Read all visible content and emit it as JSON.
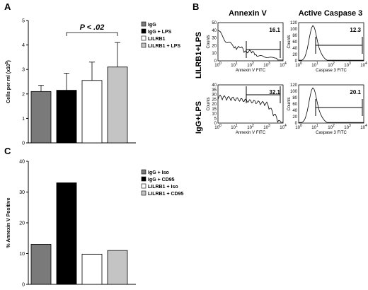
{
  "panels": {
    "a": {
      "letter": "A"
    },
    "b": {
      "letter": "B"
    },
    "c": {
      "letter": "C"
    }
  },
  "chart_data": [
    {
      "type": "bar",
      "panel": "A",
      "ylabel": "Cells per ml (x10^5)",
      "ylim": [
        0,
        5
      ],
      "yticks": [
        0,
        1,
        2,
        3,
        4,
        5
      ],
      "categories": [
        "IgG",
        "IgG + LPS",
        "LILRB1",
        "LILRB1 + LPS"
      ],
      "values": [
        2.1,
        2.15,
        2.55,
        3.1
      ],
      "errors": [
        0.25,
        0.7,
        0.75,
        1.0
      ],
      "colors": [
        "#7a7a7a",
        "#000000",
        "#ffffff",
        "#c4c4c4"
      ],
      "annotation": "P < .02",
      "legend_position": "right"
    },
    {
      "type": "histogram",
      "panel": "B",
      "columns": [
        "Annexin V",
        "Active Caspase 3"
      ],
      "rows": [
        "LILRB1+LPS",
        "IgG+LPS"
      ],
      "ylabel": "Counts",
      "xlabels": [
        "Annexin V FITC",
        "Caspase 3 FITC"
      ],
      "xticks": [
        "10^0",
        "10^1",
        "10^2",
        "10^3",
        "10^4"
      ],
      "plots": [
        {
          "row": "LILRB1+LPS",
          "column": "Annexin V",
          "value": "16.1",
          "yticks": [
            "0",
            "10",
            "20",
            "30",
            "40",
            "50"
          ]
        },
        {
          "row": "LILRB1+LPS",
          "column": "Active Caspase 3",
          "value": "12.3",
          "yticks": [
            "0",
            "20",
            "40",
            "60",
            "80",
            "100",
            "120"
          ]
        },
        {
          "row": "IgG+LPS",
          "column": "Annexin V",
          "value": "32.1",
          "yticks": [
            "0",
            "5",
            "10",
            "15",
            "20",
            "25",
            "30",
            "35",
            "40"
          ]
        },
        {
          "row": "IgG+LPS",
          "column": "Active Caspase 3",
          "value": "20.1",
          "yticks": [
            "0",
            "20",
            "40",
            "60",
            "80",
            "100",
            "120"
          ]
        }
      ]
    },
    {
      "type": "bar",
      "panel": "C",
      "ylabel": "% Annexin V Positive",
      "ylim": [
        0,
        40
      ],
      "yticks": [
        0,
        10,
        20,
        30,
        40
      ],
      "categories": [
        "IgG + Iso",
        "IgG + CD95",
        "LILRB1 + Iso",
        "LILRB1 + CD95"
      ],
      "values": [
        13,
        33,
        9.8,
        11
      ],
      "colors": [
        "#7a7a7a",
        "#000000",
        "#ffffff",
        "#c4c4c4"
      ],
      "legend_position": "right"
    }
  ]
}
